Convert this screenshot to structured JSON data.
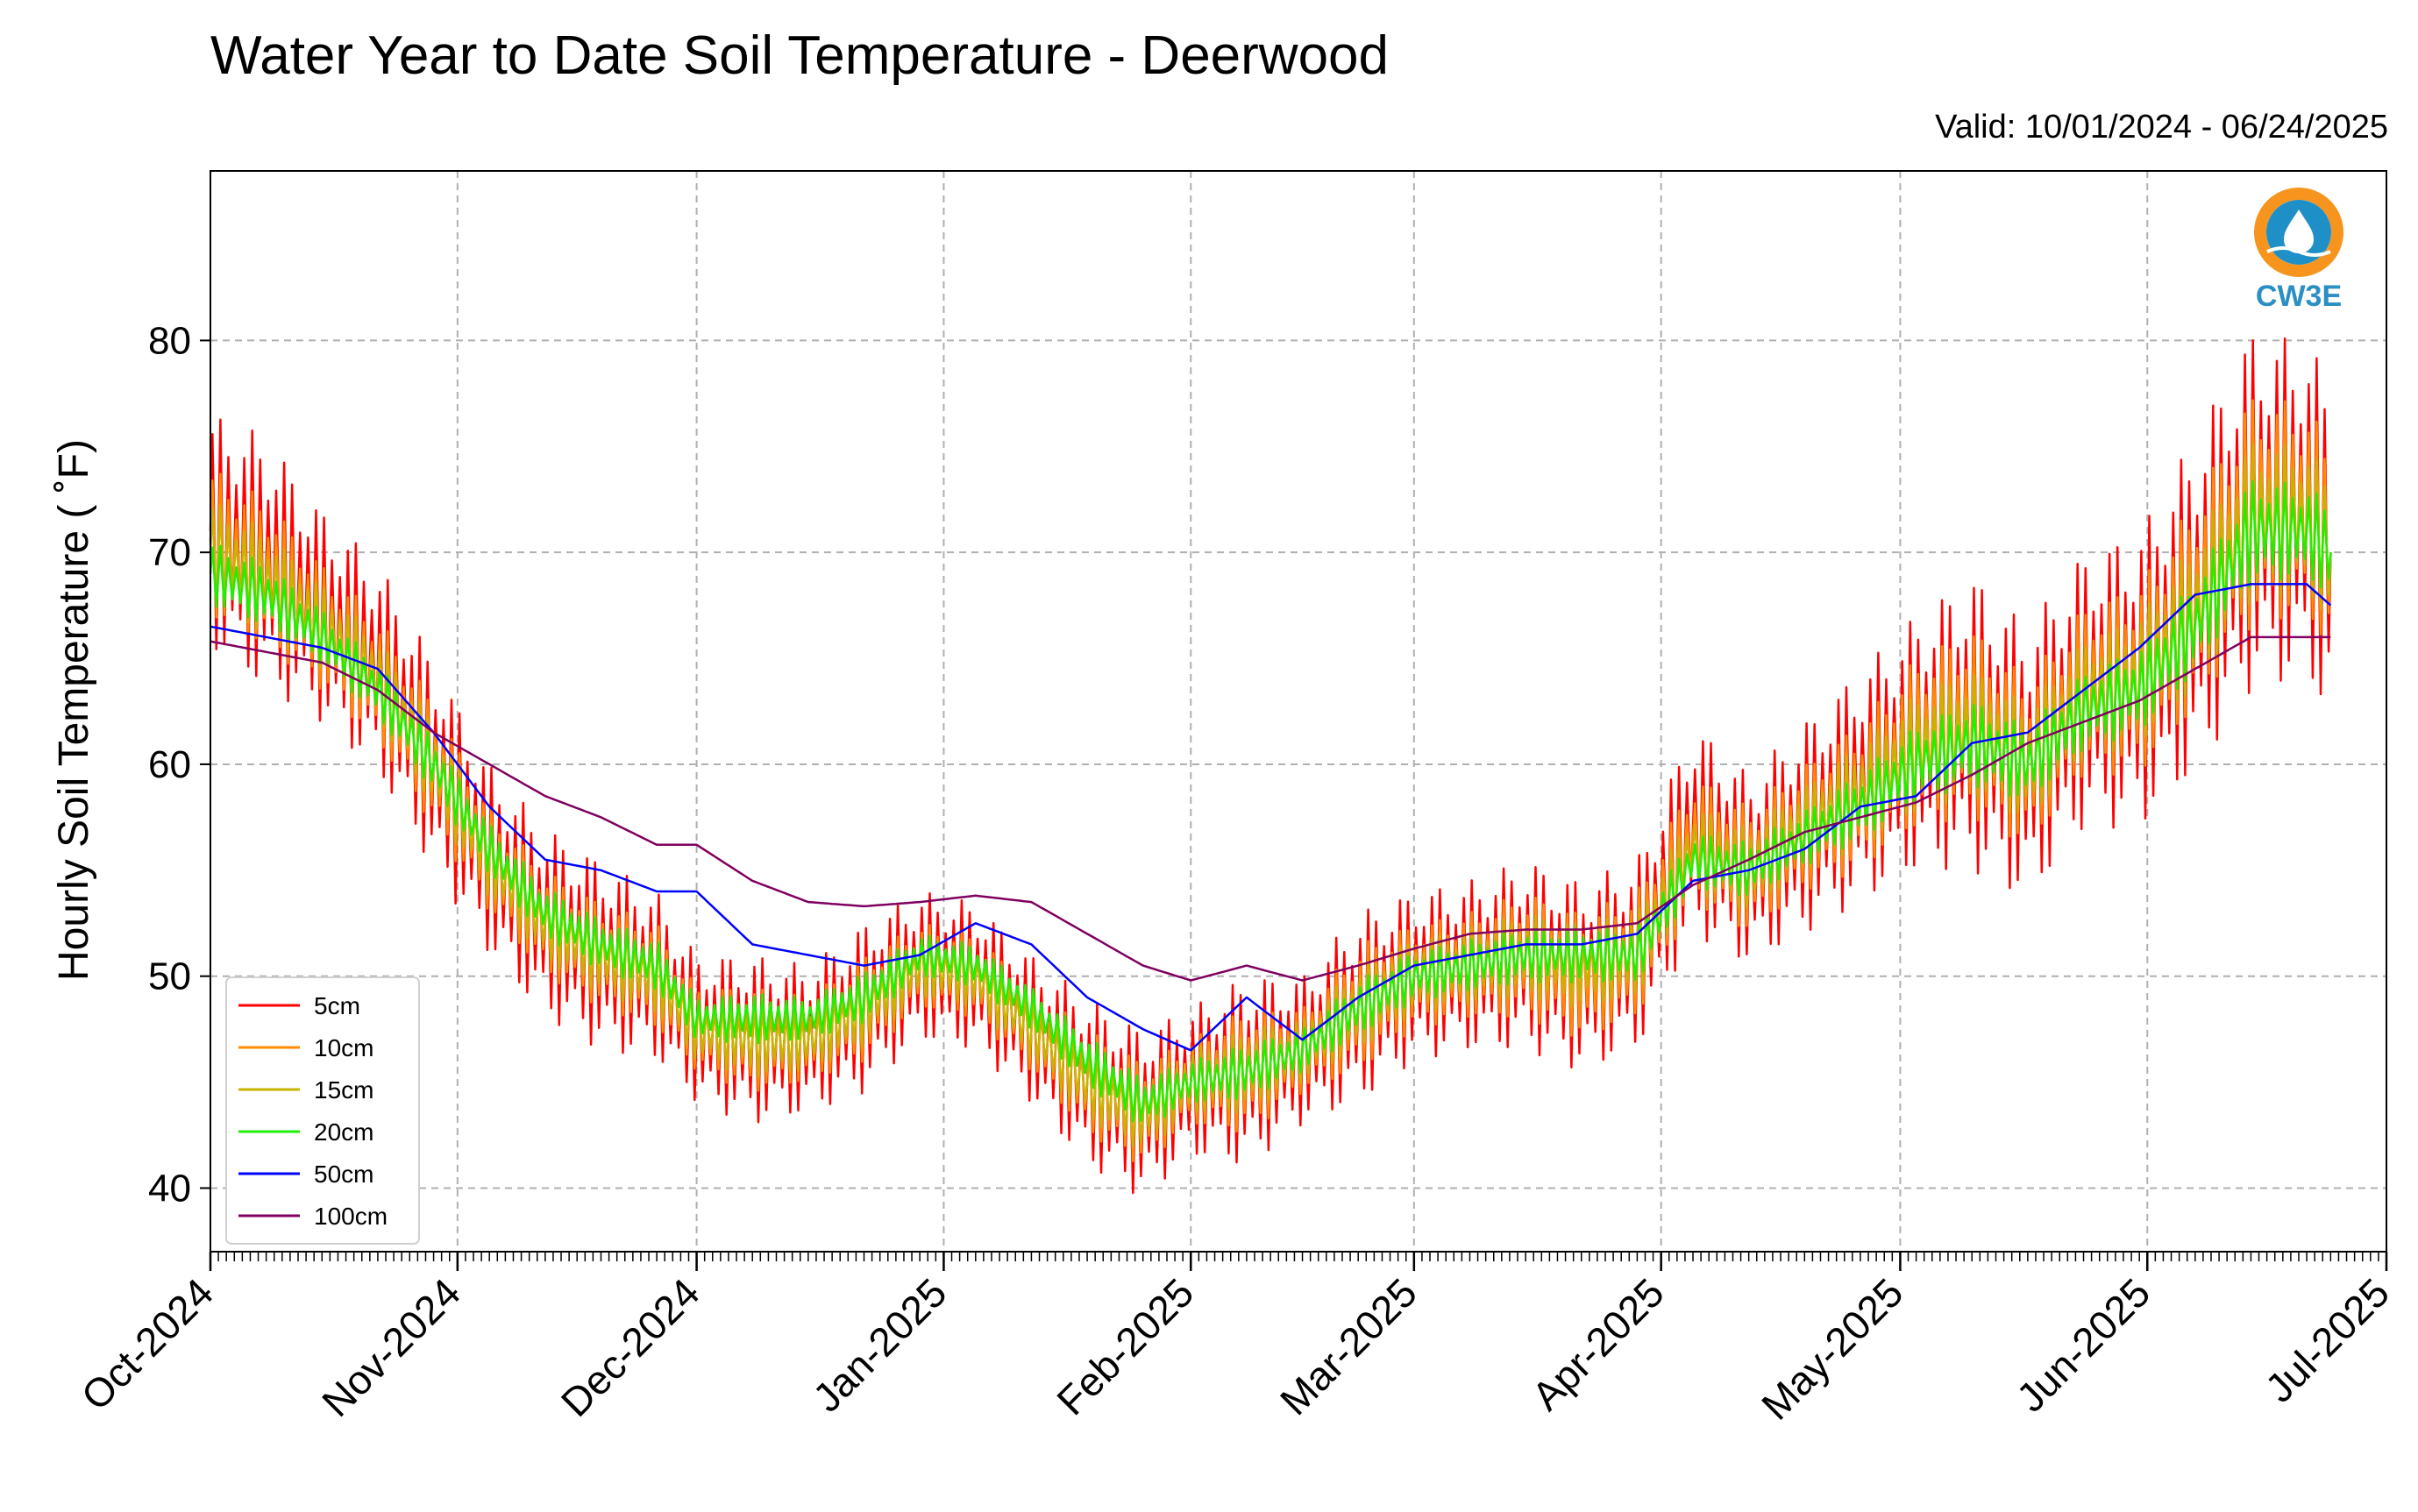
{
  "header": {
    "title": "Water Year to Date Soil Temperature - Deerwood",
    "valid": "Valid: 10/01/2024 - 06/24/2025"
  },
  "logo": {
    "text": "CW3E",
    "icon": "water-drop-logo-icon",
    "colors": {
      "ring": "#f7941d",
      "fill": "#1f8fc7",
      "text": "#2a8fc3"
    }
  },
  "chart_data": {
    "type": "line",
    "title": "Water Year to Date Soil Temperature - Deerwood",
    "ylabel": "Hourly Soil Temperature ( ˚F)",
    "xlabel": "",
    "ylim": [
      37,
      88
    ],
    "xlim": [
      "2024-10-01",
      "2025-07-01"
    ],
    "yticks": [
      40,
      50,
      60,
      70,
      80
    ],
    "xticks": [
      {
        "date": "2024-10-01",
        "label": "Oct-2024"
      },
      {
        "date": "2024-11-01",
        "label": "Nov-2024"
      },
      {
        "date": "2024-12-01",
        "label": "Dec-2024"
      },
      {
        "date": "2025-01-01",
        "label": "Jan-2025"
      },
      {
        "date": "2025-02-01",
        "label": "Feb-2025"
      },
      {
        "date": "2025-03-01",
        "label": "Mar-2025"
      },
      {
        "date": "2025-04-01",
        "label": "Apr-2025"
      },
      {
        "date": "2025-05-01",
        "label": "May-2025"
      },
      {
        "date": "2025-06-01",
        "label": "Jun-2025"
      },
      {
        "date": "2025-07-01",
        "label": "Jul-2025"
      }
    ],
    "grid": true,
    "legend_position": "lower-left",
    "series": [
      {
        "name": "5cm",
        "color": "#ff0000",
        "x": [
          "2024-10-01",
          "2024-10-08",
          "2024-10-15",
          "2024-10-22",
          "2024-10-29",
          "2024-11-05",
          "2024-11-12",
          "2024-11-19",
          "2024-11-26",
          "2024-12-01",
          "2024-12-08",
          "2024-12-15",
          "2024-12-22",
          "2024-12-29",
          "2025-01-05",
          "2025-01-12",
          "2025-01-19",
          "2025-01-26",
          "2025-02-01",
          "2025-02-08",
          "2025-02-15",
          "2025-02-22",
          "2025-03-01",
          "2025-03-08",
          "2025-03-15",
          "2025-03-22",
          "2025-03-29",
          "2025-04-05",
          "2025-04-12",
          "2025-04-19",
          "2025-04-26",
          "2025-05-03",
          "2025-05-10",
          "2025-05-17",
          "2025-05-24",
          "2025-05-31",
          "2025-06-07",
          "2025-06-14",
          "2025-06-21",
          "2025-06-24"
        ],
        "mean": [
          71,
          69.5,
          67,
          64.5,
          60,
          55.5,
          52.5,
          51,
          50,
          47.5,
          47,
          47,
          48.5,
          50.5,
          50,
          47.5,
          45,
          43.5,
          45,
          45.5,
          46.5,
          48.5,
          50,
          50.5,
          51,
          50,
          51,
          57,
          55,
          57,
          59,
          61,
          62,
          60,
          63.5,
          64,
          67.5,
          72,
          72,
          70
        ],
        "amplitude": [
          5.5,
          6,
          5,
          5,
          5,
          4.5,
          4.5,
          4.5,
          4,
          3.5,
          4,
          3.5,
          4,
          3.5,
          3.5,
          3.5,
          4,
          4,
          3.5,
          4.5,
          3.5,
          4.5,
          4,
          4,
          4.5,
          4.5,
          4.5,
          5,
          4.5,
          5,
          5.5,
          6,
          7,
          6.5,
          6.5,
          7,
          8,
          8.5,
          8,
          8
        ]
      },
      {
        "name": "10cm",
        "color": "#ff8c00",
        "x": [
          "2024-10-01",
          "2024-10-08",
          "2024-10-15",
          "2024-10-22",
          "2024-10-29",
          "2024-11-05",
          "2024-11-12",
          "2024-11-19",
          "2024-11-26",
          "2024-12-01",
          "2024-12-08",
          "2024-12-15",
          "2024-12-22",
          "2024-12-29",
          "2025-01-05",
          "2025-01-12",
          "2025-01-19",
          "2025-01-26",
          "2025-02-01",
          "2025-02-08",
          "2025-02-15",
          "2025-02-22",
          "2025-03-01",
          "2025-03-08",
          "2025-03-15",
          "2025-03-22",
          "2025-03-29",
          "2025-04-05",
          "2025-04-12",
          "2025-04-19",
          "2025-04-26",
          "2025-05-03",
          "2025-05-10",
          "2025-05-17",
          "2025-05-24",
          "2025-05-31",
          "2025-06-07",
          "2025-06-14",
          "2025-06-21",
          "2025-06-24"
        ],
        "mean": [
          70.5,
          69,
          66.5,
          64,
          60,
          55.5,
          52.5,
          51,
          50,
          47.5,
          47,
          47,
          48.5,
          50.5,
          50,
          47.5,
          45,
          43.5,
          45,
          45.5,
          46.5,
          48.5,
          50,
          50.5,
          51,
          50,
          51,
          56.5,
          55,
          57,
          58.5,
          61,
          62,
          60,
          63.5,
          64,
          67.5,
          72,
          72,
          70
        ],
        "amplitude": [
          3.5,
          3.5,
          3,
          3,
          3,
          2.5,
          2.5,
          2.5,
          2.5,
          2,
          2.5,
          2,
          2.5,
          2,
          2,
          2,
          2.5,
          2.5,
          2,
          3,
          2,
          3,
          2.5,
          2.5,
          3,
          3,
          3,
          3,
          3,
          3,
          3.5,
          4,
          4.5,
          4,
          4,
          4.5,
          5,
          5.5,
          5,
          5
        ]
      },
      {
        "name": "15cm",
        "color": "#c8b400",
        "x": [
          "2024-10-01",
          "2024-10-08",
          "2024-10-15",
          "2024-10-22",
          "2024-10-29",
          "2024-11-05",
          "2024-11-12",
          "2024-11-19",
          "2024-11-26",
          "2024-12-01",
          "2024-12-08",
          "2024-12-15",
          "2024-12-22",
          "2024-12-29",
          "2025-01-05",
          "2025-01-12",
          "2025-01-19",
          "2025-01-26",
          "2025-02-01",
          "2025-02-08",
          "2025-02-15",
          "2025-02-22",
          "2025-03-01",
          "2025-03-08",
          "2025-03-15",
          "2025-03-22",
          "2025-03-29",
          "2025-04-05",
          "2025-04-12",
          "2025-04-19",
          "2025-04-26",
          "2025-05-03",
          "2025-05-10",
          "2025-05-17",
          "2025-05-24",
          "2025-05-31",
          "2025-06-07",
          "2025-06-14",
          "2025-06-21",
          "2025-06-24"
        ],
        "mean": [
          70,
          68.5,
          66.5,
          64,
          60,
          55.5,
          52.5,
          51,
          50,
          47.5,
          47,
          47,
          48.5,
          50.5,
          50,
          47.5,
          45,
          43.5,
          45,
          45.5,
          46.5,
          48.5,
          50,
          50.5,
          51,
          50.5,
          51,
          56,
          55,
          57,
          58.5,
          60.5,
          61.5,
          60,
          63,
          64,
          67,
          71.5,
          71.5,
          70
        ],
        "amplitude": [
          2.5,
          2.5,
          2,
          2,
          2,
          1.8,
          1.8,
          1.8,
          1.8,
          1.5,
          1.8,
          1.5,
          1.8,
          1.5,
          1.5,
          1.5,
          1.8,
          1.8,
          1.5,
          2,
          1.5,
          2,
          1.8,
          1.8,
          2,
          2,
          2,
          2,
          2,
          2,
          2.5,
          2.8,
          3,
          2.8,
          2.8,
          3,
          3.5,
          3.8,
          3.5,
          3.5
        ]
      },
      {
        "name": "20cm",
        "color": "#22ee00",
        "x": [
          "2024-10-01",
          "2024-10-08",
          "2024-10-15",
          "2024-10-22",
          "2024-10-29",
          "2024-11-05",
          "2024-11-12",
          "2024-11-19",
          "2024-11-26",
          "2024-12-01",
          "2024-12-08",
          "2024-12-15",
          "2024-12-22",
          "2024-12-29",
          "2025-01-05",
          "2025-01-12",
          "2025-01-19",
          "2025-01-26",
          "2025-02-01",
          "2025-02-08",
          "2025-02-15",
          "2025-02-22",
          "2025-03-01",
          "2025-03-08",
          "2025-03-15",
          "2025-03-22",
          "2025-03-29",
          "2025-04-05",
          "2025-04-12",
          "2025-04-19",
          "2025-04-26",
          "2025-05-03",
          "2025-05-10",
          "2025-05-17",
          "2025-05-24",
          "2025-05-31",
          "2025-06-07",
          "2025-06-14",
          "2025-06-21",
          "2025-06-24"
        ],
        "mean": [
          69,
          68,
          66,
          63.5,
          60,
          56,
          53,
          51.5,
          50.5,
          48,
          48,
          48,
          49,
          51,
          50.5,
          48.5,
          46,
          44,
          45,
          45.5,
          46.5,
          48.5,
          50,
          50.5,
          51,
          51,
          51,
          55.5,
          55,
          56.5,
          58,
          60,
          61,
          60,
          62.5,
          63.5,
          66.5,
          71,
          71,
          70
        ],
        "amplitude": [
          1.5,
          1.5,
          1.3,
          1.3,
          1.3,
          1.2,
          1.2,
          1.2,
          1.2,
          1,
          1.2,
          1,
          1.2,
          1,
          1,
          1,
          1.2,
          1.2,
          1,
          1.3,
          1,
          1.3,
          1.2,
          1.2,
          1.3,
          1.3,
          1.3,
          1.3,
          1.3,
          1.3,
          1.6,
          1.8,
          2,
          1.8,
          1.8,
          2,
          2.2,
          2.5,
          2.2,
          2.2
        ]
      },
      {
        "name": "50cm",
        "color": "#0000ff",
        "x": [
          "2024-10-01",
          "2024-10-08",
          "2024-10-15",
          "2024-10-22",
          "2024-10-29",
          "2024-11-05",
          "2024-11-12",
          "2024-11-19",
          "2024-11-26",
          "2024-12-01",
          "2024-12-08",
          "2024-12-15",
          "2024-12-22",
          "2024-12-29",
          "2025-01-05",
          "2025-01-12",
          "2025-01-19",
          "2025-01-26",
          "2025-02-01",
          "2025-02-08",
          "2025-02-15",
          "2025-02-22",
          "2025-03-01",
          "2025-03-08",
          "2025-03-15",
          "2025-03-22",
          "2025-03-29",
          "2025-04-05",
          "2025-04-12",
          "2025-04-19",
          "2025-04-26",
          "2025-05-03",
          "2025-05-10",
          "2025-05-17",
          "2025-05-24",
          "2025-05-31",
          "2025-06-07",
          "2025-06-14",
          "2025-06-21",
          "2025-06-24"
        ],
        "mean": [
          66.5,
          66,
          65.5,
          64.5,
          61.5,
          58,
          55.5,
          55,
          54,
          54,
          51.5,
          51,
          50.5,
          51,
          52.5,
          51.5,
          49,
          47.5,
          46.5,
          49,
          47,
          49,
          50.5,
          51,
          51.5,
          51.5,
          52,
          54.5,
          55,
          56,
          58,
          58.5,
          61,
          61.5,
          63.5,
          65.5,
          68,
          68.5,
          68.5,
          67.5
        ],
        "amplitude": [
          0,
          0,
          0,
          0,
          0,
          0,
          0,
          0,
          0,
          0,
          0,
          0,
          0,
          0,
          0,
          0,
          0,
          0,
          0,
          0,
          0,
          0,
          0,
          0,
          0,
          0,
          0,
          0,
          0,
          0,
          0,
          0,
          0,
          0,
          0,
          0,
          0,
          0,
          0,
          0
        ]
      },
      {
        "name": "100cm",
        "color": "#800060",
        "x": [
          "2024-10-01",
          "2024-10-08",
          "2024-10-15",
          "2024-10-22",
          "2024-10-29",
          "2024-11-05",
          "2024-11-12",
          "2024-11-19",
          "2024-11-26",
          "2024-12-01",
          "2024-12-08",
          "2024-12-15",
          "2024-12-22",
          "2024-12-29",
          "2025-01-05",
          "2025-01-12",
          "2025-01-19",
          "2025-01-26",
          "2025-02-01",
          "2025-02-08",
          "2025-02-15",
          "2025-02-22",
          "2025-03-01",
          "2025-03-08",
          "2025-03-15",
          "2025-03-22",
          "2025-03-29",
          "2025-04-05",
          "2025-04-12",
          "2025-04-19",
          "2025-04-26",
          "2025-05-03",
          "2025-05-10",
          "2025-05-17",
          "2025-05-24",
          "2025-05-31",
          "2025-06-07",
          "2025-06-14",
          "2025-06-21",
          "2025-06-24"
        ],
        "mean": [
          65.8,
          65.3,
          64.8,
          63.5,
          61.5,
          60,
          58.5,
          57.5,
          56.2,
          56.2,
          54.5,
          53.5,
          53.3,
          53.5,
          53.8,
          53.5,
          52,
          50.5,
          49.8,
          50.5,
          49.8,
          50.5,
          51.3,
          52,
          52.2,
          52.2,
          52.5,
          54.3,
          55.5,
          56.8,
          57.5,
          58.2,
          59.5,
          61,
          62,
          63,
          64.5,
          66,
          66,
          66
        ],
        "amplitude": [
          0,
          0,
          0,
          0,
          0,
          0,
          0,
          0,
          0,
          0,
          0,
          0,
          0,
          0,
          0,
          0,
          0,
          0,
          0,
          0,
          0,
          0,
          0,
          0,
          0,
          0,
          0,
          0,
          0,
          0,
          0,
          0,
          0,
          0,
          0,
          0,
          0,
          0,
          0,
          0
        ]
      }
    ]
  }
}
